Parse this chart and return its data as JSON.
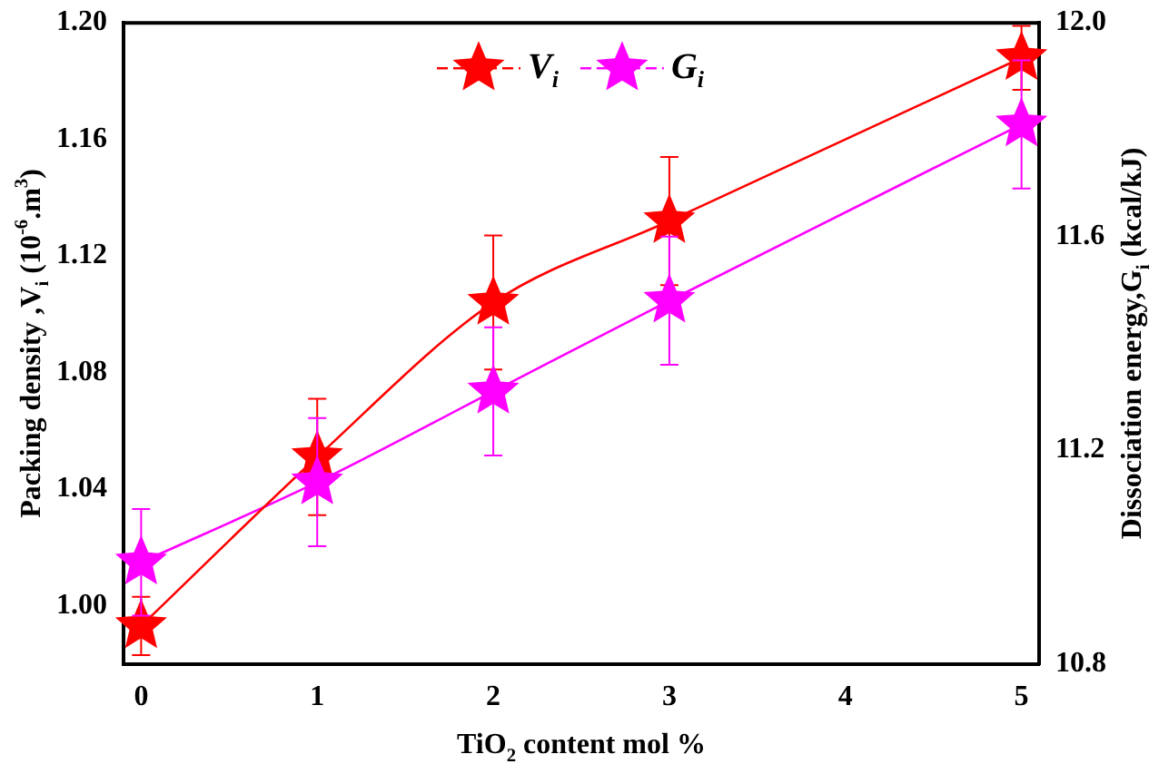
{
  "chart_data": {
    "type": "line",
    "xlabel": "TiO$_{2}$ content mol %",
    "ylabel": "Packing density ,V$_{i}$ (10$^{-6}$.m$^{3}$)",
    "y2label": "Dissociation energy,G$_{i}$ (kcal/kJ)",
    "x": [
      0,
      1,
      2,
      3,
      5
    ],
    "series": [
      {
        "name": "V$_{i}$",
        "color": "#ff0000",
        "values": [
          0.993,
          1.051,
          1.104,
          1.132,
          1.188
        ],
        "errors": [
          0.01,
          0.02,
          0.023,
          0.022,
          0.011
        ]
      },
      {
        "name": "G$_{i}$",
        "color": "#ff00ff",
        "axis": "y2",
        "values": [
          10.99,
          11.14,
          11.31,
          11.48,
          11.81
        ],
        "errors": [
          0.1,
          0.12,
          0.12,
          0.12,
          0.12
        ]
      }
    ],
    "xlim": [
      -0.1,
      5.1
    ],
    "xticks": [
      0,
      1,
      2,
      3,
      4,
      5
    ],
    "ylim": [
      0.98,
      1.2
    ],
    "yticks": [
      {
        "value": 1,
        "label": "1.00"
      },
      1.04,
      1.08,
      1.12,
      1.16,
      {
        "value": 1.2,
        "label": "1.20"
      }
    ],
    "y2lim": [
      10.8,
      12.0
    ],
    "y2ticks": [
      10.8,
      11.2,
      11.6,
      {
        "value": 12,
        "label": "12.0"
      }
    ],
    "legend": "top",
    "marker": "star",
    "line_style": "solid",
    "grid": false
  }
}
